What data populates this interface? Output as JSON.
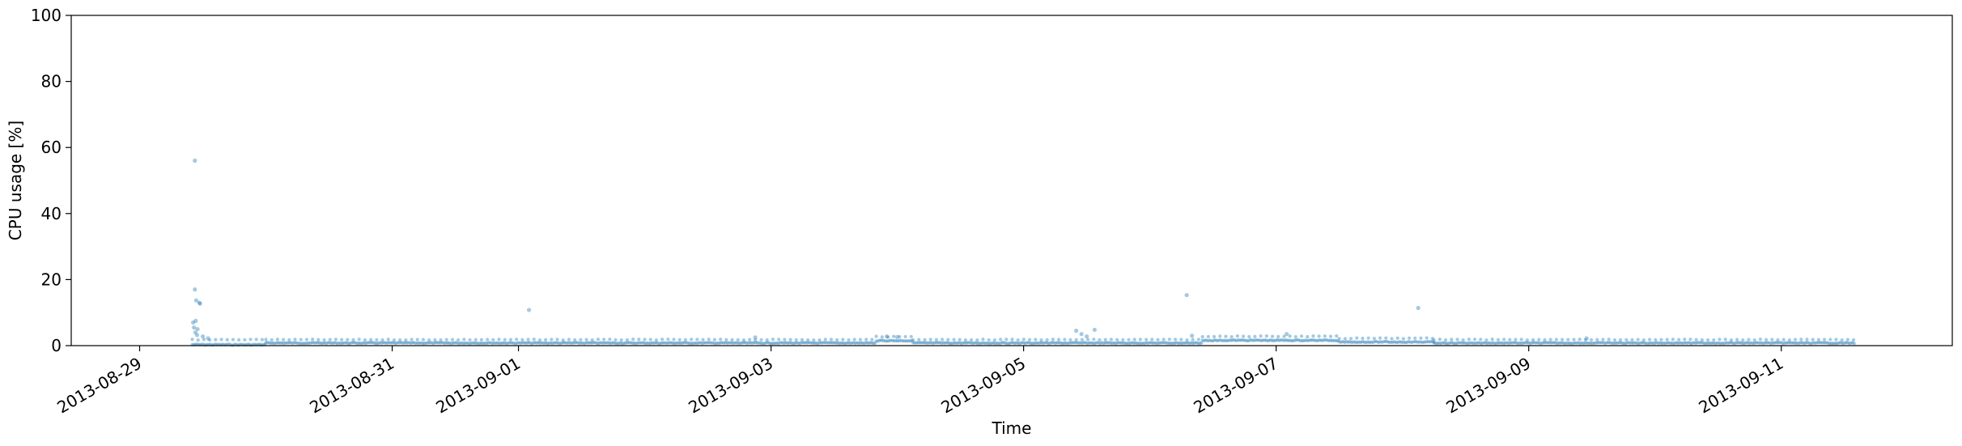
{
  "chart_data": {
    "type": "scatter",
    "xlabel": "Time",
    "ylabel": "CPU usage [%]",
    "ylim": [
      0,
      100
    ],
    "xlim": [
      "2013-08-28T11:00",
      "2013-09-12T08:30"
    ],
    "x_ticks": [
      "2013-08-29",
      "2013-08-31",
      "2013-09-01",
      "2013-09-03",
      "2013-09-05",
      "2013-09-07",
      "2013-09-09",
      "2013-09-11"
    ],
    "y_ticks": [
      0,
      20,
      40,
      60,
      80,
      100
    ],
    "grid": false,
    "marker_color": "#1f77b4",
    "marker_alpha": 0.4,
    "series": [
      {
        "points": [
          {
            "x": "2013-08-29T10:30",
            "y": 56.0
          },
          {
            "x": "2013-08-29T10:30",
            "y": 17.0
          },
          {
            "x": "2013-08-29T10:45",
            "y": 13.7
          },
          {
            "x": "2013-08-29T11:20",
            "y": 13.0
          },
          {
            "x": "2013-08-29T11:30",
            "y": 12.7
          },
          {
            "x": "2013-08-29T10:10",
            "y": 7.0
          },
          {
            "x": "2013-08-29T10:40",
            "y": 7.5
          },
          {
            "x": "2013-08-29T10:20",
            "y": 5.5
          },
          {
            "x": "2013-08-29T11:00",
            "y": 5.0
          },
          {
            "x": "2013-08-29T10:35",
            "y": 4.0
          },
          {
            "x": "2013-08-29T10:55",
            "y": 3.2
          },
          {
            "x": "2013-08-29T12:00",
            "y": 2.8
          },
          {
            "x": "2013-08-29T13:00",
            "y": 2.2
          },
          {
            "x": "2013-09-01T02:00",
            "y": 10.8
          },
          {
            "x": "2013-09-02T21:00",
            "y": 2.5
          },
          {
            "x": "2013-09-03T22:00",
            "y": 2.8
          },
          {
            "x": "2013-09-04T00:00",
            "y": 2.6
          },
          {
            "x": "2013-09-05T10:00",
            "y": 4.5
          },
          {
            "x": "2013-09-05T11:00",
            "y": 3.5
          },
          {
            "x": "2013-09-05T12:00",
            "y": 2.8
          },
          {
            "x": "2013-09-05T13:30",
            "y": 4.8
          },
          {
            "x": "2013-09-06T07:00",
            "y": 15.3
          },
          {
            "x": "2013-09-06T08:00",
            "y": 3.0
          },
          {
            "x": "2013-09-07T02:00",
            "y": 3.5
          },
          {
            "x": "2013-09-08T03:00",
            "y": 11.4
          },
          {
            "x": "2013-09-09T11:00",
            "y": 2.2
          }
        ],
        "baseline_segments": [
          {
            "x_start": "2013-08-29T10:00",
            "x_end": "2013-08-30T00:00",
            "y_base": 0.3,
            "y_upper": 1.8
          },
          {
            "x_start": "2013-08-30T00:00",
            "x_end": "2013-09-03T20:00",
            "y_base": 0.8,
            "y_upper": 1.8
          },
          {
            "x_start": "2013-09-03T20:00",
            "x_end": "2013-09-04T03:00",
            "y_base": 1.5,
            "y_upper": 2.7
          },
          {
            "x_start": "2013-09-04T03:00",
            "x_end": "2013-09-06T10:00",
            "y_base": 0.8,
            "y_upper": 1.8
          },
          {
            "x_start": "2013-09-06T10:00",
            "x_end": "2013-09-07T12:00",
            "y_base": 1.6,
            "y_upper": 2.8
          },
          {
            "x_start": "2013-09-07T12:00",
            "x_end": "2013-09-08T06:00",
            "y_base": 1.1,
            "y_upper": 2.2
          },
          {
            "x_start": "2013-09-08T06:00",
            "x_end": "2013-09-11T14:00",
            "y_base": 0.8,
            "y_upper": 1.8
          }
        ]
      }
    ]
  }
}
